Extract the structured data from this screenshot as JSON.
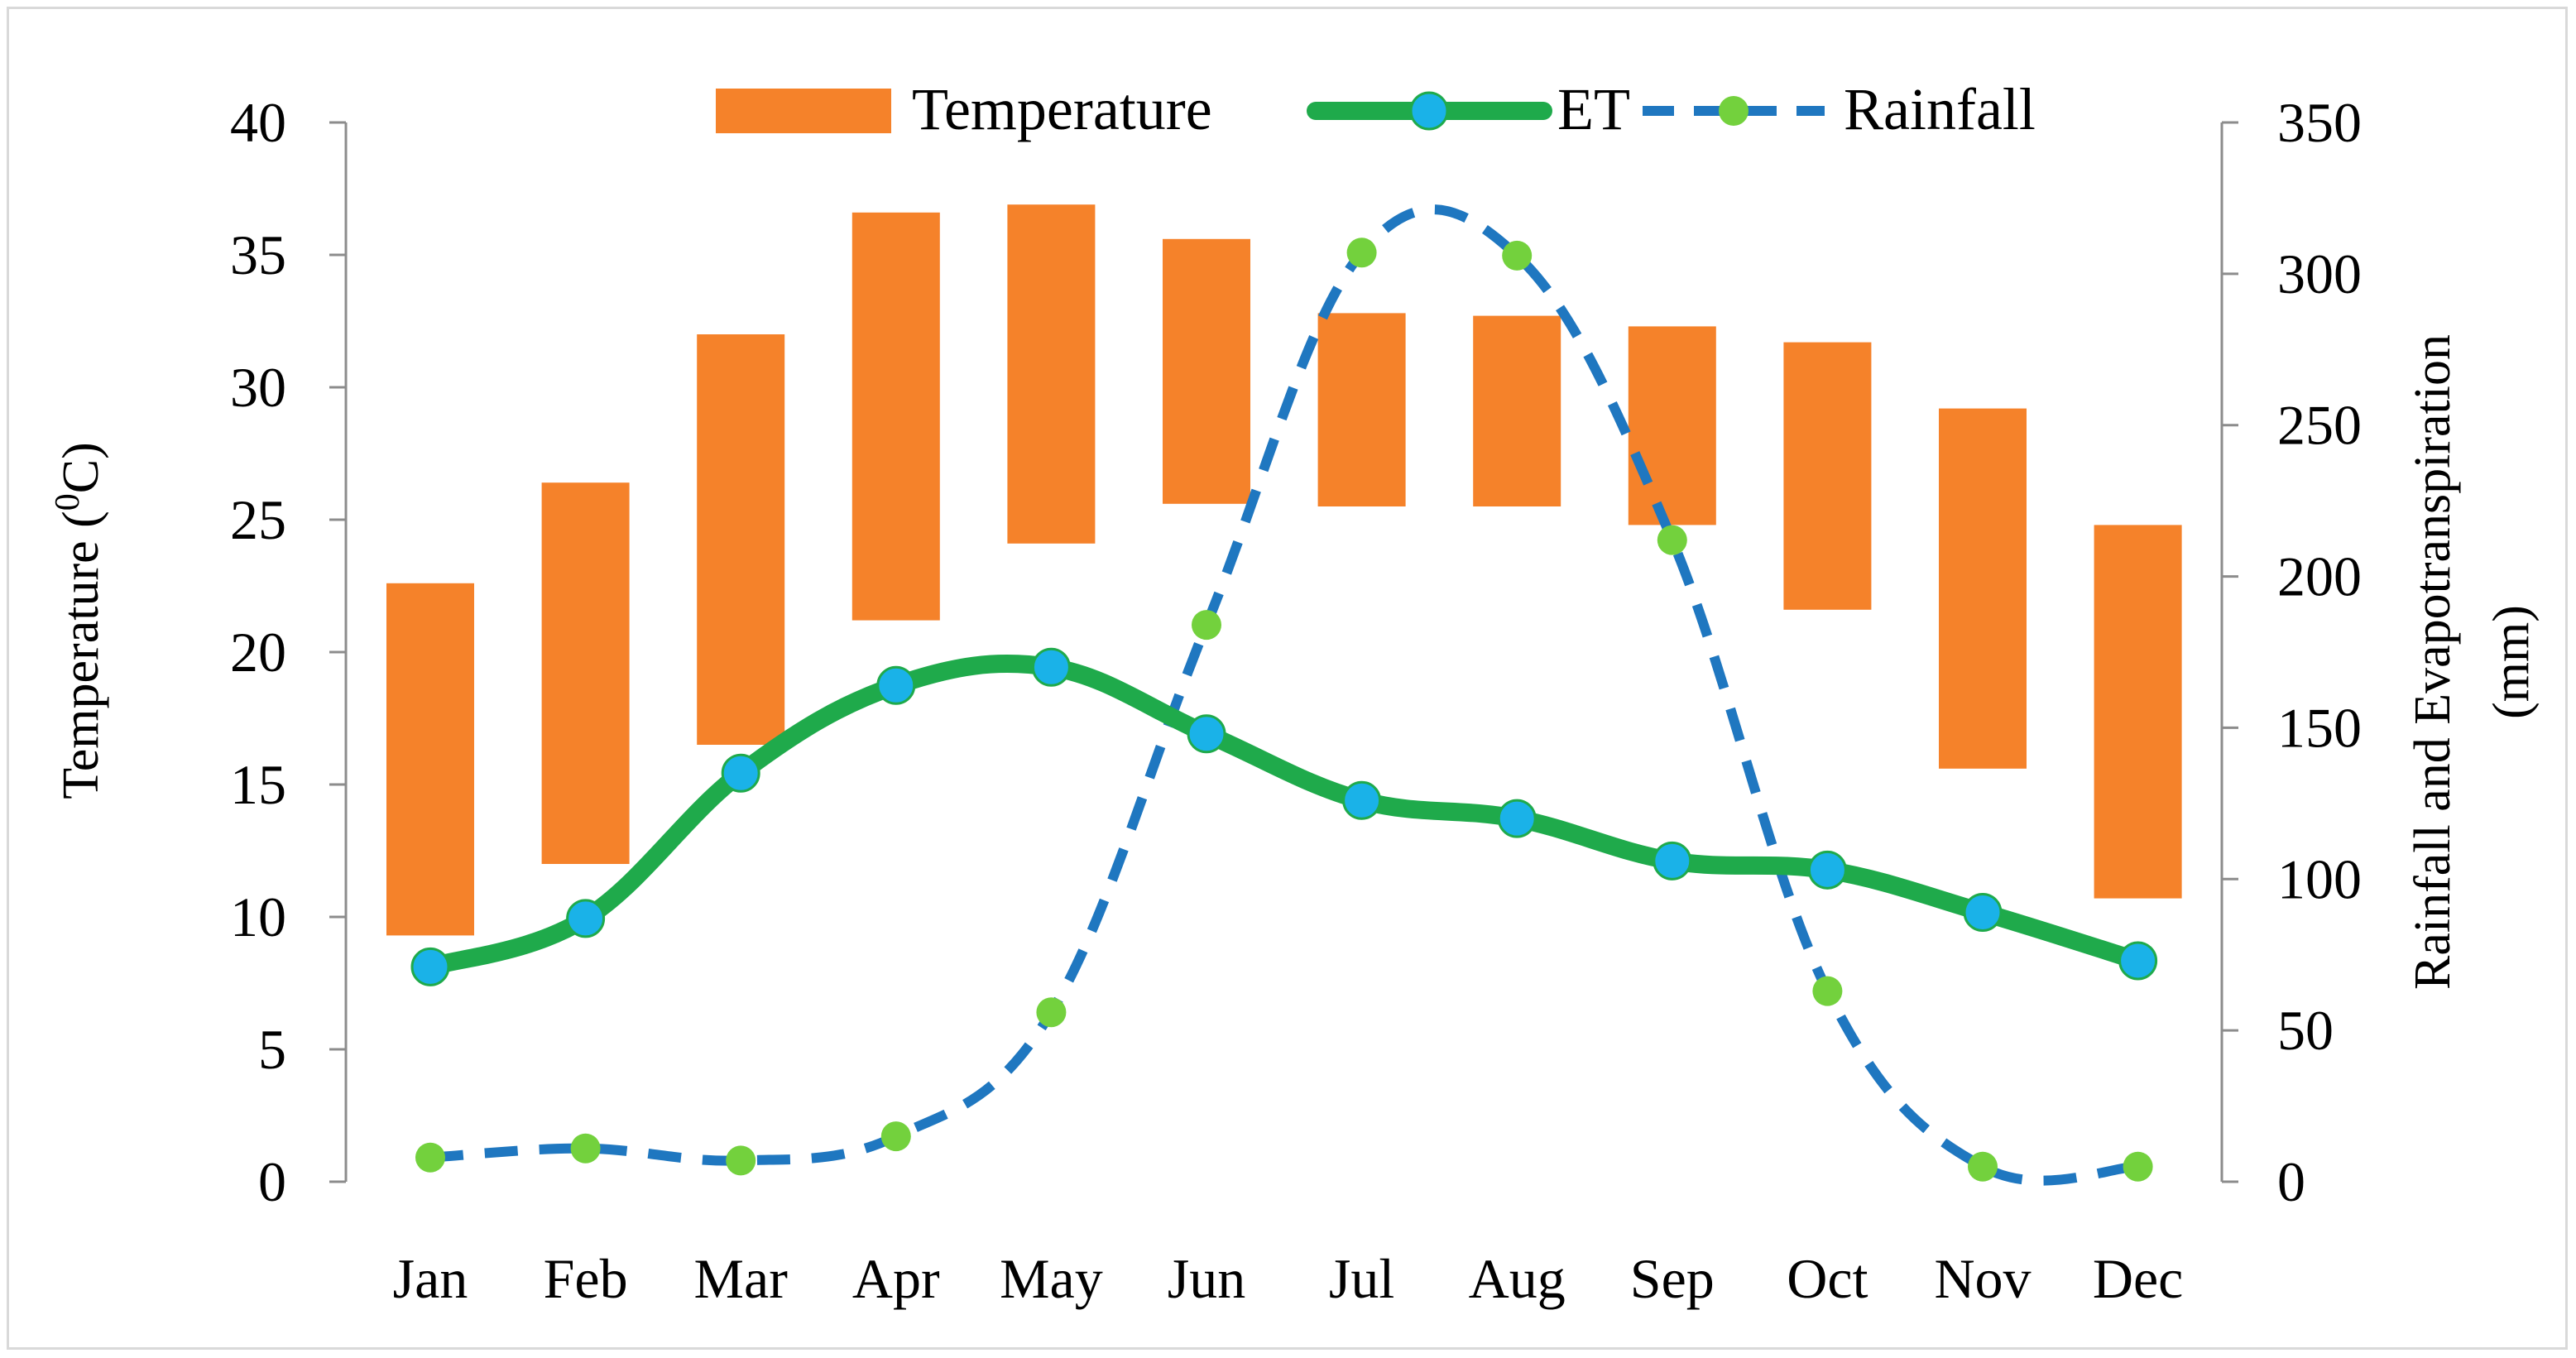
{
  "chart_data": {
    "type": "combo",
    "categories": [
      "Jan",
      "Feb",
      "Mar",
      "Apr",
      "May",
      "Jun",
      "Jul",
      "Aug",
      "Sep",
      "Oct",
      "Nov",
      "Dec"
    ],
    "series": [
      {
        "name": "Temperature",
        "kind": "floating-bar",
        "axis": "left",
        "color": "#f5822a",
        "min": [
          9.3,
          12.0,
          16.5,
          21.2,
          24.1,
          25.6,
          25.5,
          25.5,
          24.8,
          21.6,
          15.6,
          10.7
        ],
        "max": [
          22.6,
          26.4,
          32.0,
          36.6,
          36.9,
          35.6,
          32.8,
          32.7,
          32.3,
          31.7,
          29.2,
          24.8
        ]
      },
      {
        "name": "ET",
        "kind": "smooth-line",
        "axis": "right",
        "color": "#1faa4b",
        "marker_color": "#1ab2e8",
        "values": [
          71,
          87,
          135,
          164,
          170,
          148,
          126,
          120,
          106,
          103,
          89,
          73
        ]
      },
      {
        "name": "Rainfall",
        "kind": "dashed-line",
        "axis": "right",
        "color": "#1f77c0",
        "marker_color": "#73d13d",
        "values": [
          8,
          11,
          7,
          15,
          56,
          184,
          307,
          306,
          212,
          63,
          5,
          5
        ]
      }
    ],
    "y_left": {
      "label_prefix": "Temperature (",
      "label_sup": "0",
      "label_suffix": "C)",
      "min": 0,
      "max": 40,
      "ticks": [
        "0",
        "5",
        "10",
        "15",
        "20",
        "25",
        "30",
        "35",
        "40"
      ]
    },
    "y_right": {
      "label_line1": "Rainfall and Evapotranspiration",
      "label_line2": "(mm)",
      "min": 0,
      "max": 350,
      "ticks": [
        "0",
        "50",
        "100",
        "150",
        "200",
        "250",
        "300",
        "350"
      ]
    },
    "legend": {
      "position": "top",
      "labels": [
        "Temperature",
        "ET",
        "Rainfall"
      ]
    },
    "grid": false
  }
}
